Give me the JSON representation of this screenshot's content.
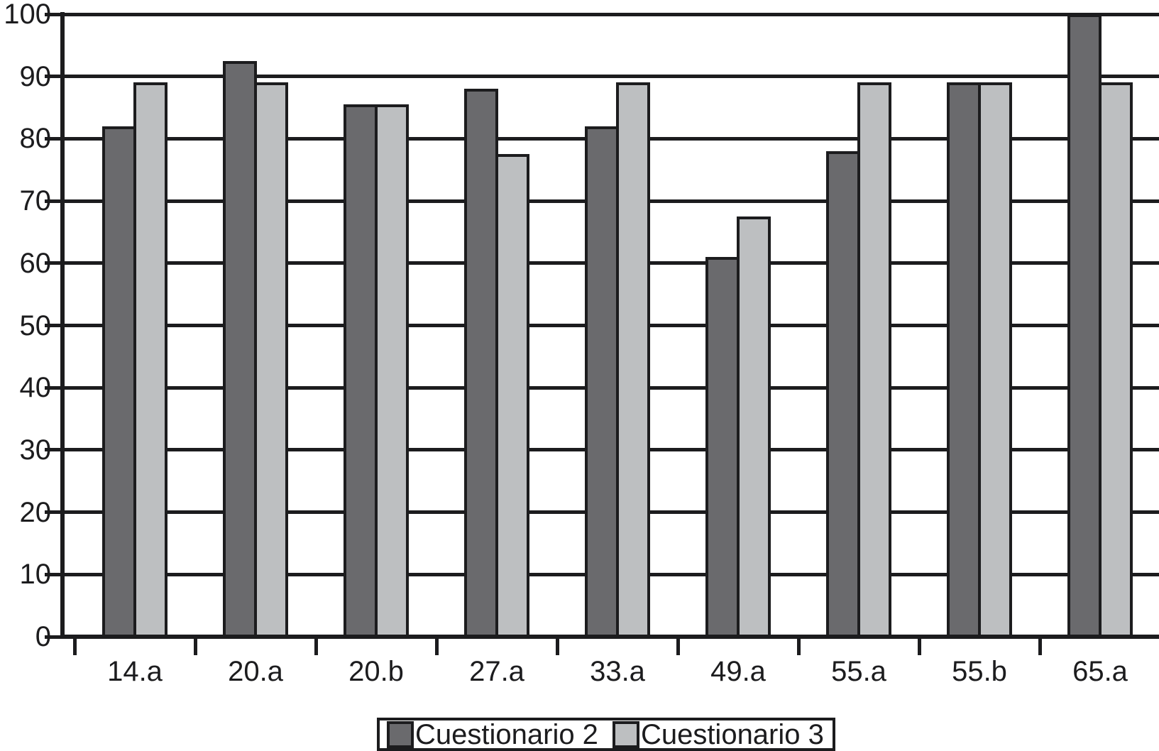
{
  "chart_data": {
    "type": "bar",
    "title": "",
    "xlabel": "",
    "ylabel": "",
    "categories": [
      "14.a",
      "20.a",
      "20.b",
      "27.a",
      "33.a",
      "49.a",
      "55.a",
      "55.b",
      "65.a"
    ],
    "series": [
      {
        "name": "Cuestionario 2",
        "color": "#6a6a6d",
        "values": [
          82,
          92.5,
          85.5,
          88,
          82,
          61,
          78,
          89,
          100
        ]
      },
      {
        "name": "Cuestionario 3",
        "color": "#bdbfc1",
        "values": [
          89,
          89,
          85.5,
          77.5,
          89,
          67.5,
          89,
          89,
          89
        ]
      }
    ],
    "ylim": [
      0,
      100
    ],
    "y_ticks": [
      0,
      10,
      20,
      30,
      40,
      50,
      60,
      70,
      80,
      90,
      100
    ],
    "grid": "horizontal",
    "gridline_color": "#1c1c1e",
    "legend_position": "bottom-center",
    "background": "#ffffff"
  }
}
